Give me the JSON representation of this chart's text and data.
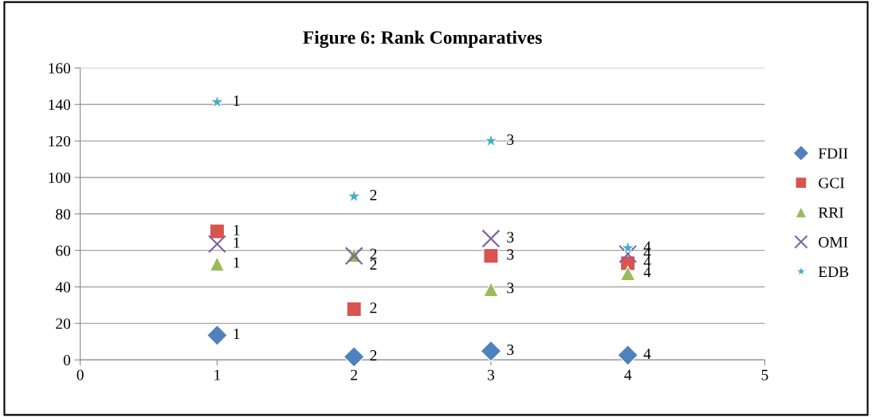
{
  "chart_data": {
    "type": "scatter",
    "title": "Figure 6: Rank Comparatives",
    "x": [
      1,
      2,
      3,
      4
    ],
    "xlim": [
      0,
      5
    ],
    "xticks": [
      0,
      1,
      2,
      3,
      4,
      5
    ],
    "ylim": [
      0,
      160
    ],
    "yticks": [
      0,
      20,
      40,
      60,
      80,
      100,
      120,
      140,
      160
    ],
    "grid": "y",
    "legend": "right",
    "series": [
      {
        "name": "FDII",
        "color": "#4f81bd",
        "marker": "diamond",
        "values": [
          13.5,
          1.7,
          4.8,
          2.6
        ]
      },
      {
        "name": "GCI",
        "color": "#d9534f",
        "marker": "square",
        "values": [
          70.4,
          27.8,
          57,
          53
        ]
      },
      {
        "name": "RRI",
        "color": "#9bbb59",
        "marker": "triangle",
        "values": [
          52.6,
          57.4,
          38.7,
          47.4
        ]
      },
      {
        "name": "OMI",
        "color": "#8064a2",
        "marker": "cross",
        "values": [
          63.5,
          57,
          66.5,
          58
        ]
      },
      {
        "name": "EDB",
        "color": "#4bacc6",
        "marker": "star",
        "values": [
          141.3,
          89.6,
          120,
          61.3
        ]
      }
    ],
    "annotations": [
      {
        "text": "1",
        "x": 1,
        "y": 13.5
      },
      {
        "text": "2",
        "x": 2,
        "y": 1.7
      },
      {
        "text": "3",
        "x": 3,
        "y": 4.8
      },
      {
        "text": "4",
        "x": 4,
        "y": 2.6
      },
      {
        "text": "1",
        "x": 1,
        "y": 70.4
      },
      {
        "text": "2",
        "x": 2,
        "y": 27.8
      },
      {
        "text": "3",
        "x": 3,
        "y": 57
      },
      {
        "text": "4",
        "x": 4,
        "y": 53
      },
      {
        "text": "1",
        "x": 1,
        "y": 52.6
      },
      {
        "text": "2",
        "x": 2,
        "y": 57.4
      },
      {
        "text": "3",
        "x": 3,
        "y": 38.7
      },
      {
        "text": "4",
        "x": 4,
        "y": 47.4
      },
      {
        "text": "1",
        "x": 1,
        "y": 63.5
      },
      {
        "text": "2",
        "x": 2,
        "y": 57
      },
      {
        "text": "3",
        "x": 3,
        "y": 66.5
      },
      {
        "text": "4",
        "x": 4,
        "y": 58
      },
      {
        "text": "1",
        "x": 1,
        "y": 141.3
      },
      {
        "text": "2",
        "x": 2,
        "y": 89.6
      },
      {
        "text": "3",
        "x": 3,
        "y": 120
      },
      {
        "text": "4",
        "x": 4,
        "y": 61.3
      }
    ]
  }
}
